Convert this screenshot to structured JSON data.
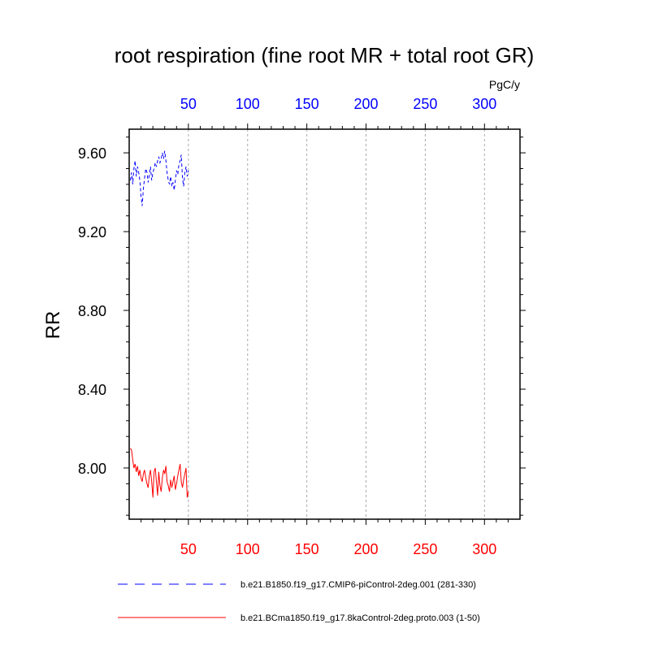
{
  "chart_data": {
    "type": "line",
    "title": "root respiration (fine root MR + total root GR)",
    "units": "PgC/y",
    "ylabel": "RR",
    "xlim": [
      0,
      330
    ],
    "ylim": [
      7.74,
      9.72
    ],
    "grid": "vertical dashed lines at x ticks",
    "x_top_ticks": [
      "50",
      "100",
      "150",
      "200",
      "250",
      "300"
    ],
    "x_bottom_ticks": [
      "50",
      "100",
      "150",
      "200",
      "250",
      "300"
    ],
    "x_tick_values": [
      50,
      100,
      150,
      200,
      250,
      300
    ],
    "y_ticks": [
      "8.00",
      "8.40",
      "8.80",
      "9.20",
      "9.60"
    ],
    "y_tick_values": [
      8.0,
      8.4,
      8.8,
      9.2,
      9.6
    ],
    "top_axis_color": "#0000ff",
    "bottom_axis_color": "#ff0000",
    "legend_position": "bottom",
    "series": [
      {
        "name": "b.e21.B1850.f19_g17.CMIP6-piControl-2deg.001 (281-330)",
        "color": "#0000ff",
        "dash": "dashed",
        "x": [
          1,
          2,
          3,
          4,
          5,
          6,
          7,
          8,
          9,
          10,
          11,
          12,
          13,
          14,
          15,
          16,
          17,
          18,
          19,
          20,
          21,
          22,
          23,
          24,
          25,
          26,
          27,
          28,
          29,
          30,
          31,
          32,
          33,
          34,
          35,
          36,
          37,
          38,
          39,
          40,
          41,
          42,
          43,
          44,
          45,
          46,
          47,
          48,
          49,
          50
        ],
        "values": [
          9.46,
          9.5,
          9.44,
          9.52,
          9.56,
          9.48,
          9.53,
          9.5,
          9.46,
          9.38,
          9.33,
          9.42,
          9.47,
          9.52,
          9.5,
          9.45,
          9.49,
          9.53,
          9.46,
          9.5,
          9.52,
          9.55,
          9.53,
          9.56,
          9.58,
          9.55,
          9.57,
          9.6,
          9.57,
          9.61,
          9.56,
          9.5,
          9.46,
          9.44,
          9.48,
          9.43,
          9.45,
          9.41,
          9.46,
          9.51,
          9.49,
          9.54,
          9.56,
          9.59,
          9.47,
          9.43,
          9.5,
          9.53,
          9.48,
          9.51
        ]
      },
      {
        "name": "b.e21.BCma1850.f19_g17.8kaControl-2deg.proto.003 (1-50)",
        "color": "#ff0000",
        "dash": "solid",
        "x": [
          1,
          2,
          3,
          4,
          5,
          6,
          7,
          8,
          9,
          10,
          11,
          12,
          13,
          14,
          15,
          16,
          17,
          18,
          19,
          20,
          21,
          22,
          23,
          24,
          25,
          26,
          27,
          28,
          29,
          30,
          31,
          32,
          33,
          34,
          35,
          36,
          37,
          38,
          39,
          40,
          41,
          42,
          43,
          44,
          45,
          46,
          47,
          48,
          49,
          50
        ],
        "values": [
          8.1,
          8.09,
          8.04,
          8.0,
          8.02,
          7.98,
          8.01,
          7.96,
          7.99,
          7.95,
          7.93,
          7.97,
          7.99,
          7.95,
          7.92,
          7.9,
          7.96,
          7.99,
          7.93,
          7.85,
          7.98,
          8.0,
          7.93,
          7.86,
          7.98,
          7.91,
          7.88,
          7.95,
          7.99,
          7.97,
          8.01,
          7.93,
          7.91,
          7.88,
          7.94,
          7.9,
          7.93,
          7.96,
          7.89,
          7.92,
          7.96,
          7.99,
          8.02,
          7.93,
          7.9,
          7.94,
          7.97,
          8.0,
          7.85,
          7.88
        ]
      }
    ]
  }
}
